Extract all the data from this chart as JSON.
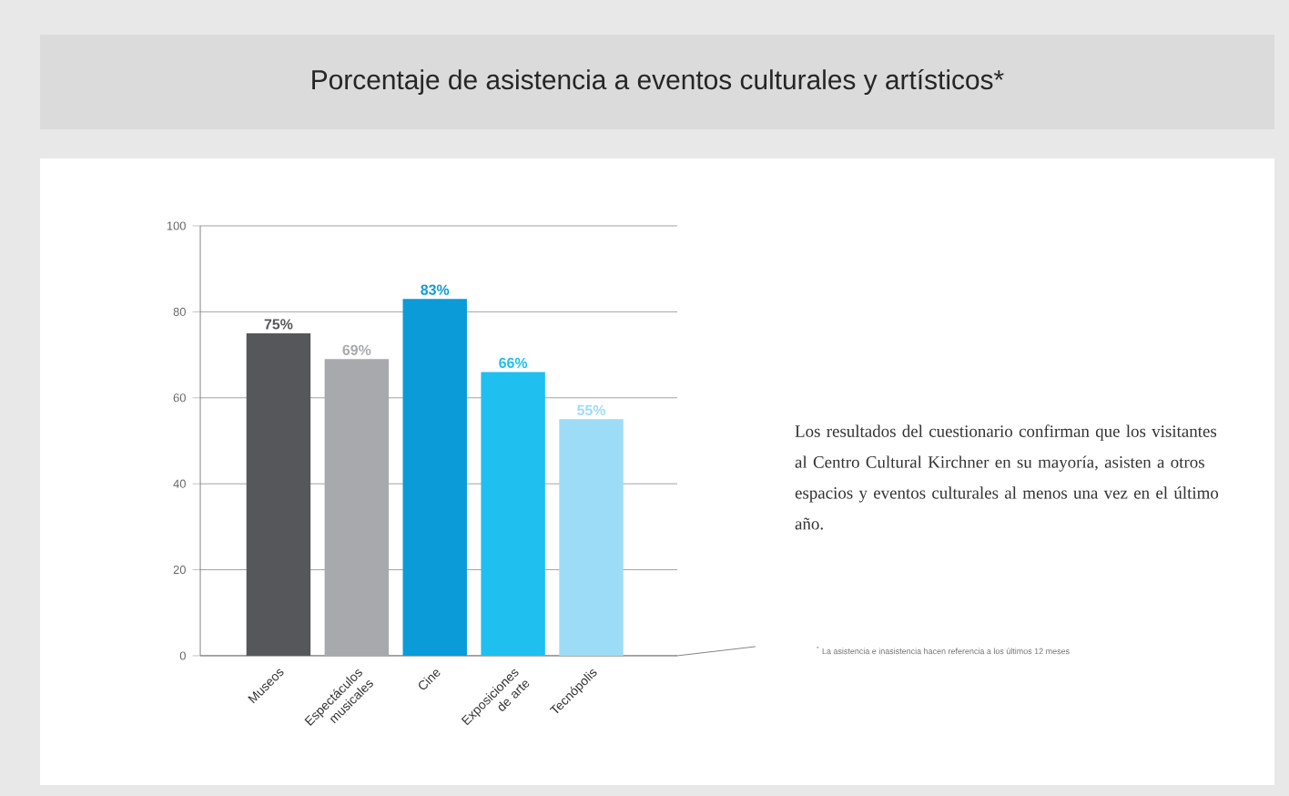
{
  "chart_data": {
    "type": "bar",
    "title": "Porcentaje de asistencia a eventos culturales y artísticos*",
    "categories": [
      "Museos",
      "Espectáculos musicales",
      "Cine",
      "Exposiciones de arte",
      "Tecnópolis"
    ],
    "values": [
      75,
      69,
      83,
      66,
      55
    ],
    "colors": [
      "#55575a",
      "#a7a9ac",
      "#0a9bd8",
      "#1fbff0",
      "#9ddcf6"
    ],
    "value_labels": [
      "75%",
      "69%",
      "83%",
      "66%",
      "55%"
    ],
    "ylim": [
      0,
      100
    ],
    "yticks": [
      0,
      20,
      40,
      60,
      80,
      100
    ],
    "grid": "y",
    "annotations": [
      "Los resultados del cuestionario confirman que los visitantes al Centro Cultural Kirchner en su mayoría, asisten a otros espacios y eventos culturales al menos una vez en el último año.",
      "$^{*}$ La asistencia e inasistencia hacen referencia a los últimos 12 meses"
    ]
  }
}
